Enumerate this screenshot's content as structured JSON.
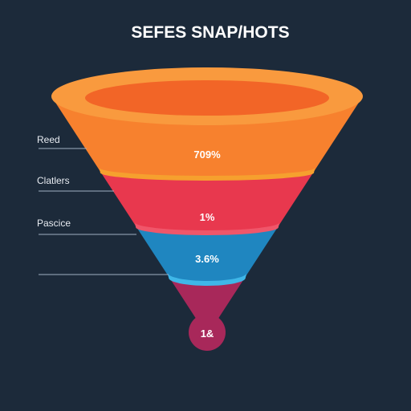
{
  "chart_data": {
    "type": "funnel",
    "title": "SEFES SNAP/HOTS",
    "stages": [
      {
        "label": "Reed",
        "value_label": "709%"
      },
      {
        "label": "Clatlers",
        "value_label": "1%"
      },
      {
        "label": "Pascice",
        "value_label": "3.6%"
      },
      {
        "label": "",
        "value_label": "1&"
      }
    ],
    "colors": {
      "background": "#1c2a3a",
      "stage1": "#f7812e",
      "stage1_rim": "#f99a3e",
      "stage1_inner": "#f26527",
      "stage2": "#e8384e",
      "stage2_band": "#f0566a",
      "stage3": "#1f86c0",
      "stage3_band": "#3fb7e8",
      "stage4": "#a8285a",
      "divider_band": "#f6a02e",
      "text": "#ffffff",
      "label_text": "#e8ecf2",
      "leader": "#9fb0c2"
    }
  }
}
